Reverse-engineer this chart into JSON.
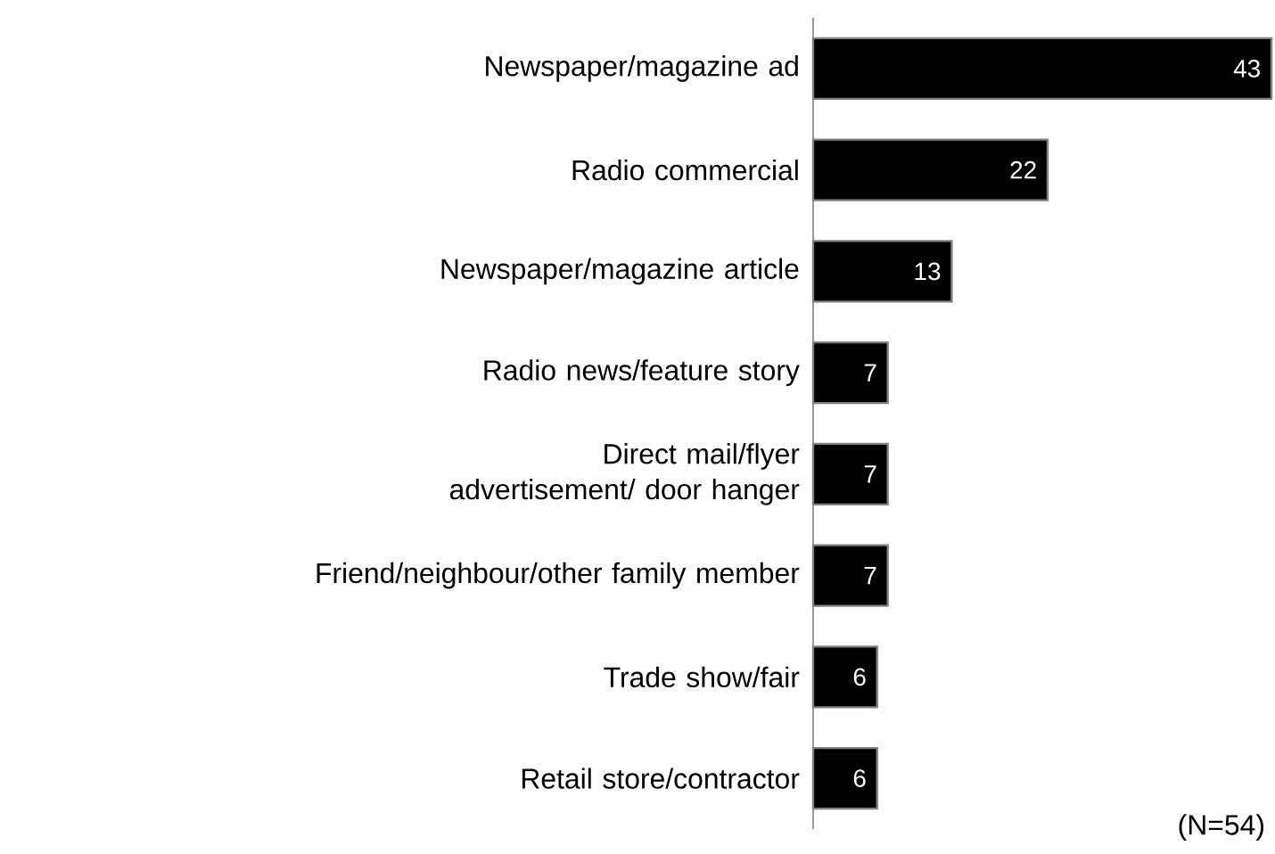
{
  "chart_data": {
    "type": "bar",
    "orientation": "horizontal",
    "categories": [
      "Newspaper/magazine ad",
      "Radio commercial",
      "Newspaper/magazine article",
      "Radio news/feature story",
      "Direct mail/flyer advertisement/ door hanger",
      "Friend/neighbour/other family member",
      "Trade show/fair",
      "Retail store/contractor"
    ],
    "values": [
      43,
      22,
      13,
      7,
      7,
      7,
      6,
      6
    ],
    "color": "#000000",
    "data_labels": true,
    "annotations": [
      "(N=54)"
    ]
  }
}
